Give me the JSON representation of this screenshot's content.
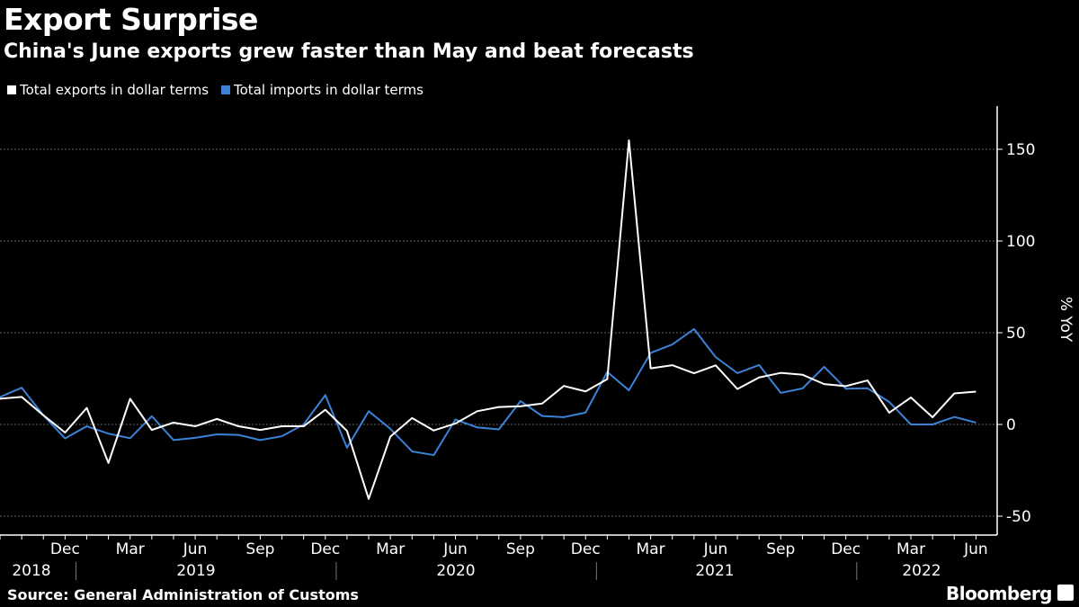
{
  "title": "Export Surprise",
  "subtitle": "China's June exports grew faster than May and beat forecasts",
  "source": "Source: General Administration of Customs",
  "logo": "Bloomberg",
  "colors": {
    "exports": "#ffffff",
    "imports": "#3b82d6",
    "background": "#000000"
  },
  "chart_data": {
    "type": "line",
    "title": "Export Surprise",
    "subtitle": "China's June exports grew faster than May and beat forecasts",
    "ylabel": "% YoY",
    "ylim": [
      -60,
      175
    ],
    "yticks": [
      -50,
      0,
      50,
      100,
      150
    ],
    "grid": true,
    "legend_placement": "top-left",
    "x_start": "2018-09",
    "x_end": "2022-06",
    "x_tick_labels": [
      "Dec",
      "Mar",
      "Jun",
      "Sep",
      "Dec",
      "Mar",
      "Jun",
      "Sep",
      "Dec",
      "Mar",
      "Jun",
      "Sep",
      "Dec",
      "Mar",
      "Jun"
    ],
    "year_labels": [
      "2018",
      "2019",
      "2020",
      "2021",
      "2022"
    ],
    "series": [
      {
        "name": "Total exports in dollar terms",
        "color": "#ffffff",
        "values": [
          14,
          15,
          5,
          -4.4,
          9,
          -21,
          14,
          -3,
          1,
          -1,
          3,
          -1,
          -3,
          -1,
          -1,
          8,
          -3.5,
          -40.6,
          -6.6,
          3.5,
          -3.3,
          0.5,
          7.2,
          9.5,
          9.9,
          11.4,
          21,
          18,
          24.7,
          154.9,
          30.6,
          32.3,
          27.9,
          32.2,
          19.3,
          25.6,
          28.1,
          27.1,
          22,
          20.9,
          24,
          6.4,
          14.7,
          3.9,
          16.9,
          17.9
        ]
      },
      {
        "name": "Total imports in dollar terms",
        "color": "#3b82d6",
        "values": [
          15,
          20,
          5,
          -7.6,
          -1,
          -5,
          -7.5,
          4.5,
          -8.5,
          -7.3,
          -5.4,
          -5.7,
          -8.5,
          -6.4,
          0,
          16,
          -12.7,
          7.2,
          -2.4,
          -14.7,
          -16.7,
          2.7,
          -1.6,
          -2.7,
          12.7,
          4.6,
          4,
          6.5,
          28.6,
          18.6,
          39,
          43.6,
          52,
          36.7,
          28,
          32.4,
          17.2,
          19.6,
          31.4,
          19.5,
          19.7,
          12.3,
          0,
          0,
          4.1,
          1
        ]
      }
    ]
  }
}
